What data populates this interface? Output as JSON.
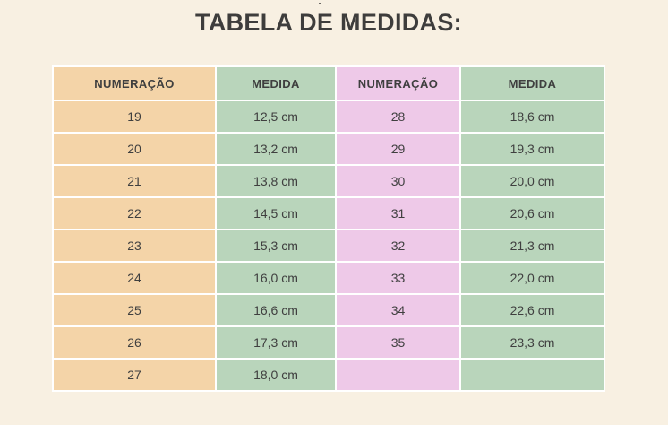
{
  "title": "TABELA DE MEDIDAS:",
  "colors": {
    "background": "#f8f0e2",
    "numeracao_left": "#f4d4a8",
    "medida": "#b9d5bb",
    "numeracao_right": "#eec9e8"
  },
  "table": {
    "headers": [
      "NUMERAÇÃO",
      "MEDIDA",
      "NUMERAÇÃO",
      "MEDIDA"
    ],
    "rows": [
      [
        "19",
        "12,5 cm",
        "28",
        "18,6 cm"
      ],
      [
        "20",
        "13,2 cm",
        "29",
        "19,3 cm"
      ],
      [
        "21",
        "13,8 cm",
        "30",
        "20,0 cm"
      ],
      [
        "22",
        "14,5 cm",
        "31",
        "20,6 cm"
      ],
      [
        "23",
        "15,3 cm",
        "32",
        "21,3 cm"
      ],
      [
        "24",
        "16,0 cm",
        "33",
        "22,0 cm"
      ],
      [
        "25",
        "16,6 cm",
        "34",
        "22,6 cm"
      ],
      [
        "26",
        "17,3 cm",
        "35",
        "23,3 cm"
      ],
      [
        "27",
        "18,0 cm",
        "",
        ""
      ]
    ]
  }
}
